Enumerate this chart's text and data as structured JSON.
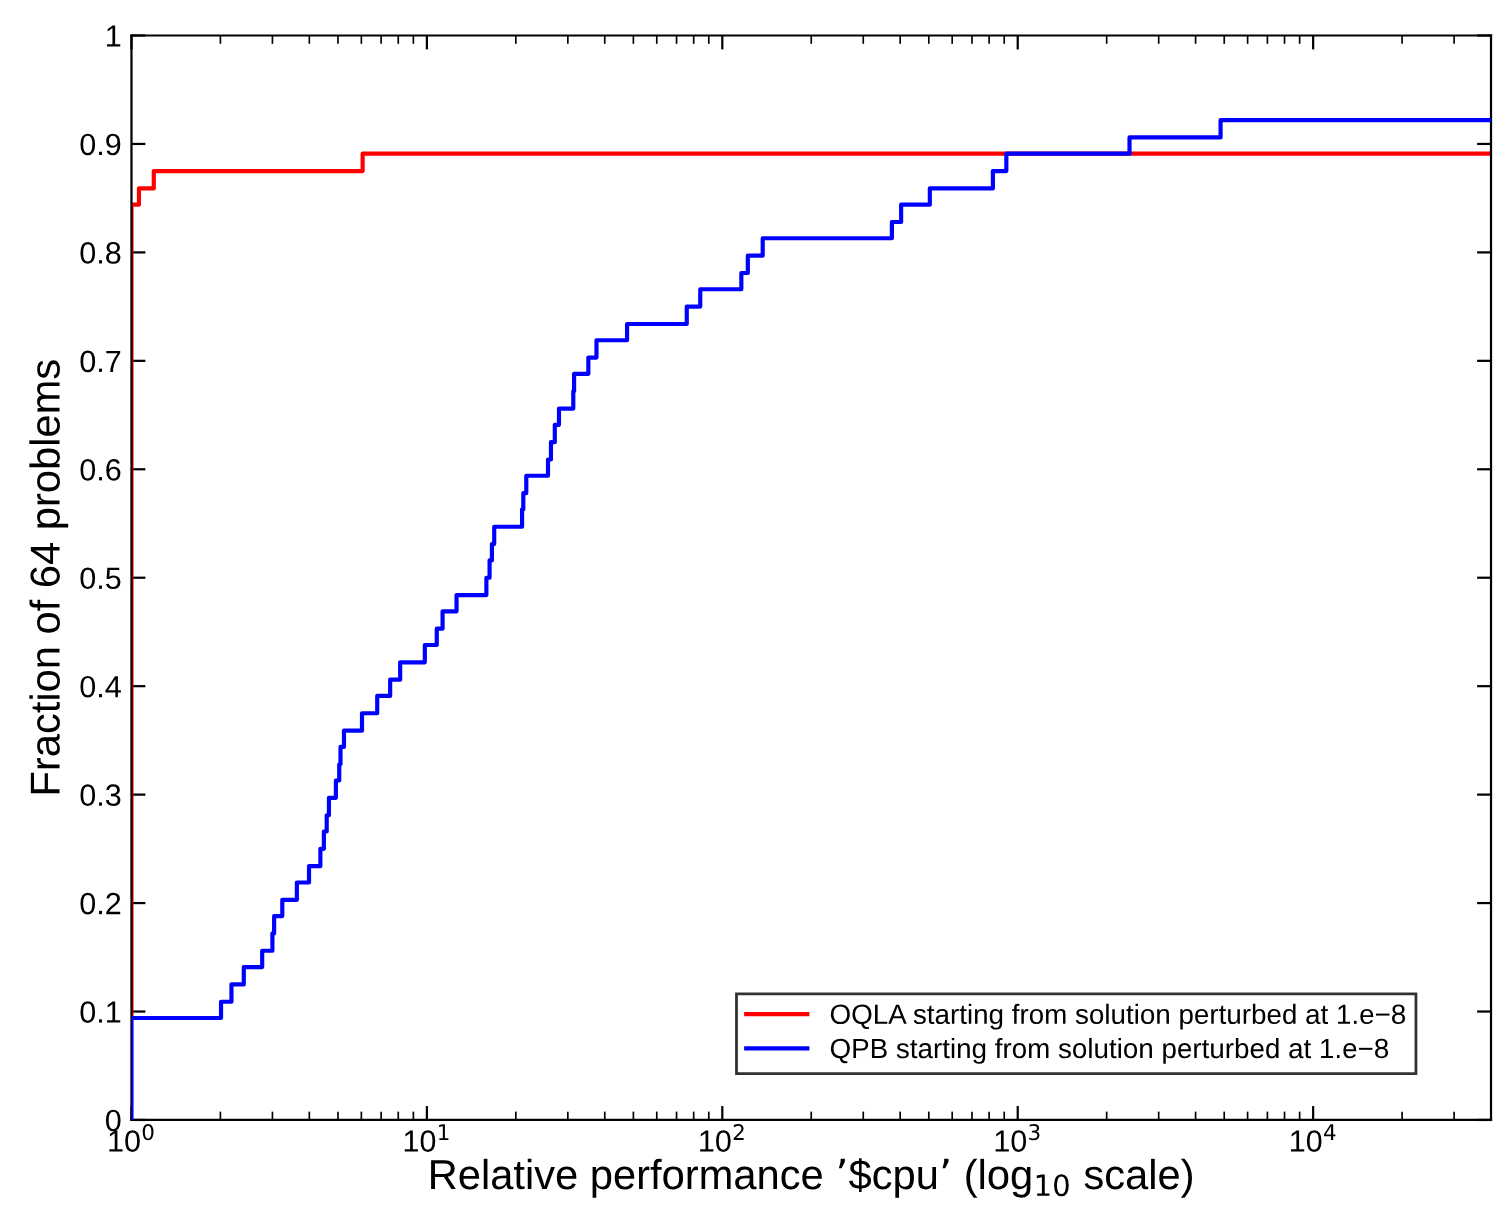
{
  "chart_data": {
    "type": "step",
    "xlabel": "Relative performance ’$cpu’ (log$_{10}$ scale)",
    "ylabel": "Fraction of 64 problems",
    "log": "x",
    "xlim": [
      1,
      40000
    ],
    "ylim": [
      0,
      1
    ],
    "xticks": [
      {
        "value": 1,
        "label": "10$^{0}$"
      },
      {
        "value": 10,
        "label": "10$^{1}$"
      },
      {
        "value": 100,
        "label": "10$^{2}$"
      },
      {
        "value": 1000,
        "label": "10$^{3}$"
      },
      {
        "value": 10000,
        "label": "10$^{4}$"
      }
    ],
    "yticks": [
      0,
      0.1,
      0.2,
      0.3,
      0.4,
      0.5,
      0.6,
      0.7,
      0.8,
      0.9,
      1
    ],
    "grid": false,
    "legend": "bottom right",
    "marker": "none",
    "line_style": "solid",
    "series": [
      {
        "name": "OQLA starting from solution perturbed at 1.e−8",
        "color": "#ff0000",
        "x": [
          1,
          1,
          1.06,
          1.19,
          6.06,
          40000
        ],
        "values": [
          0.094,
          0.844,
          0.859,
          0.875,
          0.891,
          0.891
        ]
      },
      {
        "name": "QPB starting from solution perturbed at 1.e−8",
        "color": "#0000ff",
        "x": [
          1,
          1,
          2.01,
          2.18,
          2.4,
          2.77,
          3.0,
          3.04,
          3.24,
          3.63,
          3.99,
          4.36,
          4.48,
          4.58,
          4.66,
          4.92,
          5.05,
          5.1,
          5.24,
          6.03,
          6.79,
          7.51,
          8.12,
          9.84,
          10.8,
          11.3,
          12.6,
          15.9,
          16.3,
          16.6,
          16.9,
          21.0,
          21.2,
          21.7,
          25.7,
          26.3,
          27.1,
          28.0,
          31.3,
          31.5,
          35.2,
          37.5,
          47.6,
          75.8,
          84.2,
          116,
          122,
          137,
          375,
          403,
          504,
          824,
          915,
          2390,
          4860,
          40000
        ],
        "values": [
          0,
          0.094,
          0.109,
          0.125,
          0.141,
          0.156,
          0.172,
          0.188,
          0.203,
          0.219,
          0.234,
          0.25,
          0.266,
          0.281,
          0.297,
          0.313,
          0.328,
          0.344,
          0.359,
          0.375,
          0.391,
          0.406,
          0.422,
          0.438,
          0.453,
          0.469,
          0.484,
          0.5,
          0.516,
          0.531,
          0.547,
          0.563,
          0.578,
          0.594,
          0.609,
          0.625,
          0.641,
          0.656,
          0.672,
          0.688,
          0.703,
          0.719,
          0.734,
          0.75,
          0.766,
          0.781,
          0.797,
          0.813,
          0.828,
          0.844,
          0.859,
          0.875,
          0.891,
          0.906,
          0.922,
          0.922
        ]
      }
    ]
  }
}
